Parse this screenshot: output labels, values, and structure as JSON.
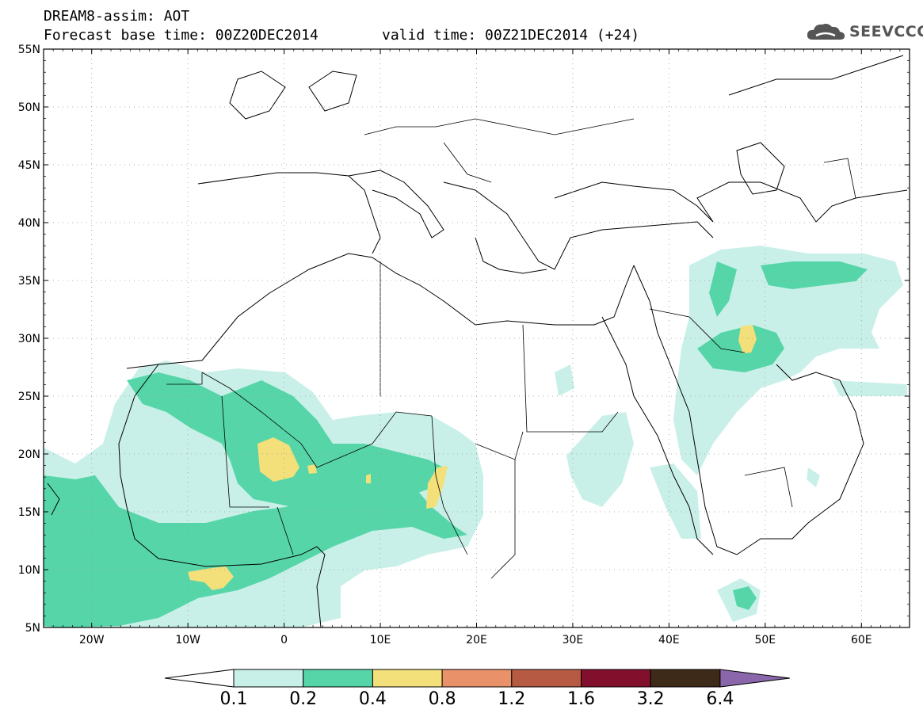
{
  "header": {
    "line1": "DREAM8-assim: AOT",
    "line2": "Forecast base time: 00Z20DEC2014",
    "valid": "valid time: 00Z21DEC2014 (+24)"
  },
  "logo": {
    "text": "SEEVCCC",
    "icon": "cloud-icon"
  },
  "axes": {
    "lat_labels": [
      "55N",
      "50N",
      "45N",
      "40N",
      "35N",
      "30N",
      "25N",
      "20N",
      "15N",
      "10N",
      "5N"
    ],
    "lon_labels": [
      "20W",
      "10W",
      "0",
      "10E",
      "20E",
      "30E",
      "40E",
      "50E",
      "60E"
    ],
    "lon_range": [
      -25,
      65
    ],
    "lat_range": [
      5,
      55
    ],
    "grid": "dotted"
  },
  "legend": {
    "thresholds": [
      "0.1",
      "0.2",
      "0.4",
      "0.8",
      "1.2",
      "1.6",
      "3.2",
      "6.4"
    ],
    "colors": [
      "#ffffff",
      "#c9f0e8",
      "#56d6a8",
      "#f3e07a",
      "#e9926a",
      "#b65a44",
      "#82102c",
      "#3e2a18",
      "#8a67aa"
    ]
  }
}
